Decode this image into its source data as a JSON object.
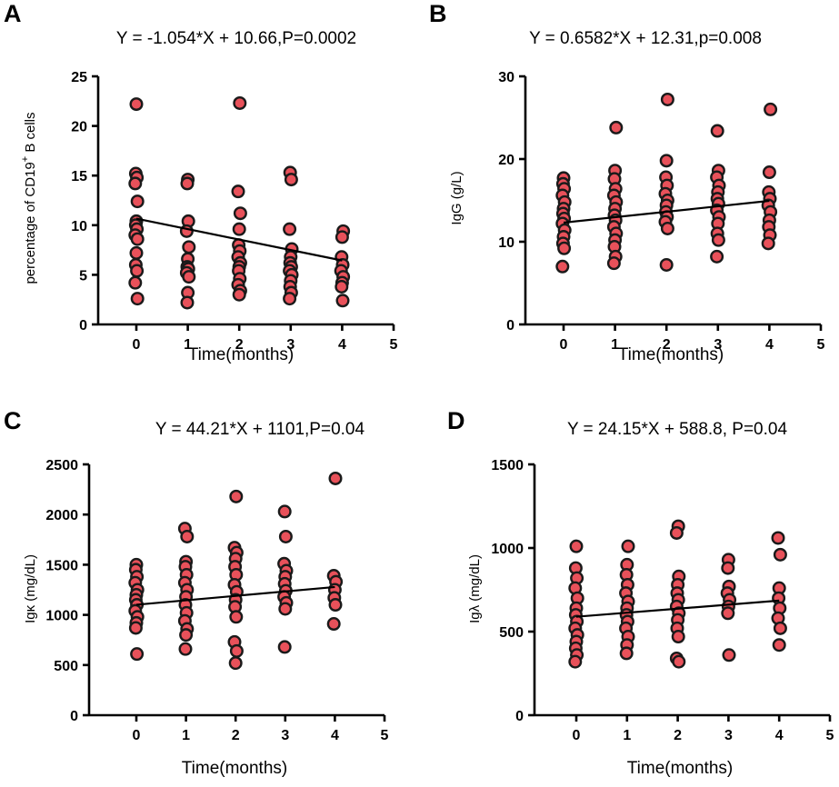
{
  "colors": {
    "point_fill": "#e8515a",
    "point_stroke": "#1a1a1a",
    "line": "#000000"
  },
  "chart_data": [
    {
      "panel": "A",
      "type": "scatter",
      "title": "Y = -1.054*X + 10.66,P=0.0002",
      "xlabel": "Time(months)",
      "ylabel_prefix": "percentage of CD19",
      "ylabel_sup": "+",
      "ylabel_suffix": " B cells",
      "xlim": [
        -1,
        5
      ],
      "ylim": [
        0,
        25
      ],
      "xticks": [
        0,
        1,
        2,
        3,
        4,
        5
      ],
      "xtick_labels": [
        "0",
        "1",
        "2",
        "3",
        "4",
        "5"
      ],
      "yticks": [
        0,
        5,
        10,
        15,
        20,
        25
      ],
      "ytick_labels": [
        "0",
        "5",
        "10",
        "15",
        "20",
        "25"
      ],
      "regression": {
        "slope": -1.054,
        "intercept": 10.66,
        "x_range": [
          0,
          4
        ]
      },
      "points": [
        [
          0,
          22.2
        ],
        [
          0,
          15.2
        ],
        [
          0,
          14.8
        ],
        [
          0,
          14.2
        ],
        [
          0,
          12.4
        ],
        [
          0,
          10.4
        ],
        [
          0,
          10.0
        ],
        [
          0,
          9.6
        ],
        [
          0,
          9.0
        ],
        [
          0,
          8.6
        ],
        [
          0,
          7.2
        ],
        [
          0,
          6.0
        ],
        [
          0,
          5.4
        ],
        [
          0,
          4.2
        ],
        [
          0,
          2.6
        ],
        [
          1,
          14.6
        ],
        [
          1,
          14.2
        ],
        [
          1,
          10.4
        ],
        [
          1,
          9.4
        ],
        [
          1,
          7.8
        ],
        [
          1,
          6.6
        ],
        [
          1,
          5.8
        ],
        [
          1,
          5.6
        ],
        [
          1,
          5.2
        ],
        [
          1,
          4.8
        ],
        [
          1,
          3.2
        ],
        [
          1,
          2.2
        ],
        [
          2,
          22.3
        ],
        [
          2,
          13.4
        ],
        [
          2,
          11.2
        ],
        [
          2,
          9.6
        ],
        [
          2,
          8.0
        ],
        [
          2,
          7.4
        ],
        [
          2,
          6.8
        ],
        [
          2,
          6.2
        ],
        [
          2,
          5.8
        ],
        [
          2,
          5.4
        ],
        [
          2,
          4.6
        ],
        [
          2,
          4.0
        ],
        [
          2,
          3.4
        ],
        [
          2,
          3.0
        ],
        [
          3,
          15.3
        ],
        [
          3,
          14.6
        ],
        [
          3,
          9.6
        ],
        [
          3,
          7.6
        ],
        [
          3,
          6.8
        ],
        [
          3,
          6.2
        ],
        [
          3,
          5.8
        ],
        [
          3,
          5.4
        ],
        [
          3,
          5.0
        ],
        [
          3,
          4.4
        ],
        [
          3,
          3.8
        ],
        [
          3,
          3.2
        ],
        [
          3,
          2.6
        ],
        [
          4,
          9.4
        ],
        [
          4,
          8.8
        ],
        [
          4,
          6.8
        ],
        [
          4,
          6.0
        ],
        [
          4,
          5.4
        ],
        [
          4,
          4.8
        ],
        [
          4,
          4.2
        ],
        [
          4,
          3.8
        ],
        [
          4,
          2.4
        ]
      ]
    },
    {
      "panel": "B",
      "type": "scatter",
      "title": "Y = 0.6582*X + 12.31,p=0.008",
      "xlabel": "Time(months)",
      "ylabel": "IgG (g/L)",
      "xlim": [
        -1,
        5
      ],
      "ylim": [
        0,
        30
      ],
      "xticks": [
        0,
        1,
        2,
        3,
        4,
        5
      ],
      "xtick_labels": [
        "0",
        "1",
        "2",
        "3",
        "4",
        "5"
      ],
      "yticks": [
        0,
        10,
        20,
        30
      ],
      "ytick_labels": [
        "0",
        "10",
        "20",
        "30"
      ],
      "regression": {
        "slope": 0.6582,
        "intercept": 12.31,
        "x_range": [
          0,
          4
        ]
      },
      "points": [
        [
          0,
          17.7
        ],
        [
          0,
          17.0
        ],
        [
          0,
          16.4
        ],
        [
          0,
          15.6
        ],
        [
          0,
          14.8
        ],
        [
          0,
          14.0
        ],
        [
          0,
          13.4
        ],
        [
          0,
          12.8
        ],
        [
          0,
          12.2
        ],
        [
          0,
          11.4
        ],
        [
          0,
          10.6
        ],
        [
          0,
          9.8
        ],
        [
          0,
          9.2
        ],
        [
          0,
          7.0
        ],
        [
          1,
          23.8
        ],
        [
          1,
          18.6
        ],
        [
          1,
          17.6
        ],
        [
          1,
          16.4
        ],
        [
          1,
          15.6
        ],
        [
          1,
          14.8
        ],
        [
          1,
          14.0
        ],
        [
          1,
          13.2
        ],
        [
          1,
          12.6
        ],
        [
          1,
          11.8
        ],
        [
          1,
          11.0
        ],
        [
          1,
          10.2
        ],
        [
          1,
          9.4
        ],
        [
          1,
          8.2
        ],
        [
          1,
          7.4
        ],
        [
          2,
          27.2
        ],
        [
          2,
          19.8
        ],
        [
          2,
          17.8
        ],
        [
          2,
          16.8
        ],
        [
          2,
          15.8
        ],
        [
          2,
          15.0
        ],
        [
          2,
          14.4
        ],
        [
          2,
          13.6
        ],
        [
          2,
          13.0
        ],
        [
          2,
          12.4
        ],
        [
          2,
          11.6
        ],
        [
          2,
          7.2
        ],
        [
          3,
          23.4
        ],
        [
          3,
          18.6
        ],
        [
          3,
          17.8
        ],
        [
          3,
          16.8
        ],
        [
          3,
          16.0
        ],
        [
          3,
          15.2
        ],
        [
          3,
          14.6
        ],
        [
          3,
          13.8
        ],
        [
          3,
          13.0
        ],
        [
          3,
          12.2
        ],
        [
          3,
          11.0
        ],
        [
          3,
          10.2
        ],
        [
          3,
          8.2
        ],
        [
          4,
          26.0
        ],
        [
          4,
          18.4
        ],
        [
          4,
          16.0
        ],
        [
          4,
          15.2
        ],
        [
          4,
          14.4
        ],
        [
          4,
          13.6
        ],
        [
          4,
          12.6
        ],
        [
          4,
          11.8
        ],
        [
          4,
          10.8
        ],
        [
          4,
          9.8
        ]
      ]
    },
    {
      "panel": "C",
      "type": "scatter",
      "title": "Y = 44.21*X + 1101,P=0.04",
      "xlabel": "Time(months)",
      "ylabel": "Igκ (mg/dL)",
      "xlim": [
        -1,
        5
      ],
      "ylim": [
        0,
        2500
      ],
      "xticks": [
        0,
        1,
        2,
        3,
        4,
        5
      ],
      "xtick_labels": [
        "0",
        "1",
        "2",
        "3",
        "4",
        "5"
      ],
      "yticks": [
        0,
        500,
        1000,
        1500,
        2000,
        2500
      ],
      "ytick_labels": [
        "0",
        "500",
        "1000",
        "1500",
        "2000",
        "2500"
      ],
      "regression": {
        "slope": 44.21,
        "intercept": 1101,
        "x_range": [
          0,
          4
        ]
      },
      "points": [
        [
          0,
          1500
        ],
        [
          0,
          1450
        ],
        [
          0,
          1380
        ],
        [
          0,
          1320
        ],
        [
          0,
          1250
        ],
        [
          0,
          1200
        ],
        [
          0,
          1150
        ],
        [
          0,
          1100
        ],
        [
          0,
          1040
        ],
        [
          0,
          980
        ],
        [
          0,
          920
        ],
        [
          0,
          870
        ],
        [
          0,
          610
        ],
        [
          1,
          1860
        ],
        [
          1,
          1780
        ],
        [
          1,
          1530
        ],
        [
          1,
          1480
        ],
        [
          1,
          1400
        ],
        [
          1,
          1320
        ],
        [
          1,
          1250
        ],
        [
          1,
          1180
        ],
        [
          1,
          1100
        ],
        [
          1,
          1020
        ],
        [
          1,
          940
        ],
        [
          1,
          860
        ],
        [
          1,
          800
        ],
        [
          1,
          660
        ],
        [
          2,
          2180
        ],
        [
          2,
          1670
        ],
        [
          2,
          1620
        ],
        [
          2,
          1560
        ],
        [
          2,
          1480
        ],
        [
          2,
          1400
        ],
        [
          2,
          1300
        ],
        [
          2,
          1230
        ],
        [
          2,
          1150
        ],
        [
          2,
          1080
        ],
        [
          2,
          980
        ],
        [
          2,
          730
        ],
        [
          2,
          640
        ],
        [
          2,
          520
        ],
        [
          3,
          2030
        ],
        [
          3,
          1780
        ],
        [
          3,
          1510
        ],
        [
          3,
          1440
        ],
        [
          3,
          1380
        ],
        [
          3,
          1310
        ],
        [
          3,
          1240
        ],
        [
          3,
          1180
        ],
        [
          3,
          1120
        ],
        [
          3,
          1060
        ],
        [
          3,
          680
        ],
        [
          4,
          2360
        ],
        [
          4,
          1390
        ],
        [
          4,
          1330
        ],
        [
          4,
          1250
        ],
        [
          4,
          1170
        ],
        [
          4,
          1100
        ],
        [
          4,
          910
        ]
      ]
    },
    {
      "panel": "D",
      "type": "scatter",
      "title": "Y = 24.15*X + 588.8,  P=0.04",
      "xlabel": "Time(months)",
      "ylabel": "Igλ (mg/dL)",
      "xlim": [
        -1,
        5
      ],
      "ylim": [
        0,
        1500
      ],
      "xticks": [
        0,
        1,
        2,
        3,
        4,
        5
      ],
      "xtick_labels": [
        "0",
        "1",
        "2",
        "3",
        "4",
        "5"
      ],
      "yticks": [
        0,
        500,
        1000,
        1500
      ],
      "ytick_labels": [
        "0",
        "500",
        "1000",
        "1500"
      ],
      "regression": {
        "slope": 24.15,
        "intercept": 588.8,
        "x_range": [
          0,
          4
        ]
      },
      "points": [
        [
          0,
          1010
        ],
        [
          0,
          880
        ],
        [
          0,
          820
        ],
        [
          0,
          760
        ],
        [
          0,
          700
        ],
        [
          0,
          640
        ],
        [
          0,
          600
        ],
        [
          0,
          560
        ],
        [
          0,
          520
        ],
        [
          0,
          480
        ],
        [
          0,
          440
        ],
        [
          0,
          400
        ],
        [
          0,
          360
        ],
        [
          0,
          320
        ],
        [
          1,
          1010
        ],
        [
          1,
          900
        ],
        [
          1,
          840
        ],
        [
          1,
          780
        ],
        [
          1,
          730
        ],
        [
          1,
          680
        ],
        [
          1,
          640
        ],
        [
          1,
          600
        ],
        [
          1,
          560
        ],
        [
          1,
          520
        ],
        [
          1,
          470
        ],
        [
          1,
          420
        ],
        [
          1,
          370
        ],
        [
          2,
          1130
        ],
        [
          2,
          1090
        ],
        [
          2,
          830
        ],
        [
          2,
          780
        ],
        [
          2,
          730
        ],
        [
          2,
          690
        ],
        [
          2,
          650
        ],
        [
          2,
          610
        ],
        [
          2,
          570
        ],
        [
          2,
          520
        ],
        [
          2,
          470
        ],
        [
          2,
          340
        ],
        [
          2,
          320
        ],
        [
          3,
          930
        ],
        [
          3,
          880
        ],
        [
          3,
          770
        ],
        [
          3,
          730
        ],
        [
          3,
          690
        ],
        [
          3,
          650
        ],
        [
          3,
          610
        ],
        [
          3,
          360
        ],
        [
          4,
          1060
        ],
        [
          4,
          960
        ],
        [
          4,
          760
        ],
        [
          4,
          700
        ],
        [
          4,
          640
        ],
        [
          4,
          580
        ],
        [
          4,
          520
        ],
        [
          4,
          420
        ]
      ]
    }
  ]
}
